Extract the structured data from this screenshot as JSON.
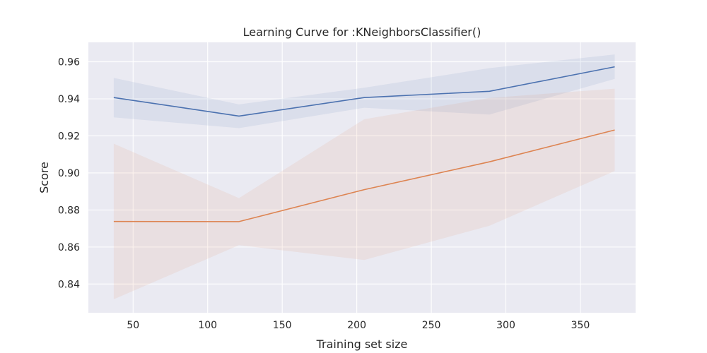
{
  "chart_data": {
    "type": "line",
    "title": "Learning Curve for :KNeighborsClassifier()",
    "xlabel": "Training set size",
    "ylabel": "Score",
    "xlim": [
      20,
      387
    ],
    "ylim": [
      0.8245,
      0.9705
    ],
    "grid": true,
    "legend": "none",
    "x": [
      37,
      121,
      205,
      289,
      373
    ],
    "xticks": [
      50,
      100,
      150,
      200,
      250,
      300,
      350
    ],
    "yticks": [
      0.84,
      0.86,
      0.88,
      0.9,
      0.92,
      0.94,
      0.96
    ],
    "ytick_labels": [
      "0.84",
      "0.86",
      "0.88",
      "0.90",
      "0.92",
      "0.94",
      "0.96"
    ],
    "series": [
      {
        "values": [
          0.9407,
          0.9307,
          0.9407,
          0.9441,
          0.9573
        ],
        "band_lower": [
          0.93,
          0.9242,
          0.9352,
          0.9315,
          0.9508
        ],
        "band_upper": [
          0.9513,
          0.937,
          0.946,
          0.9566,
          0.964
        ],
        "color": "#4c72b0"
      },
      {
        "values": [
          0.8738,
          0.8737,
          0.891,
          0.906,
          0.9232
        ],
        "band_lower": [
          0.8318,
          0.861,
          0.853,
          0.8715,
          0.901
        ],
        "band_upper": [
          0.9158,
          0.8864,
          0.929,
          0.9405,
          0.9455
        ],
        "color": "#dd8452"
      }
    ],
    "colors": {
      "plot_background": "#eaeaf2",
      "grid": "#ffffff"
    }
  }
}
